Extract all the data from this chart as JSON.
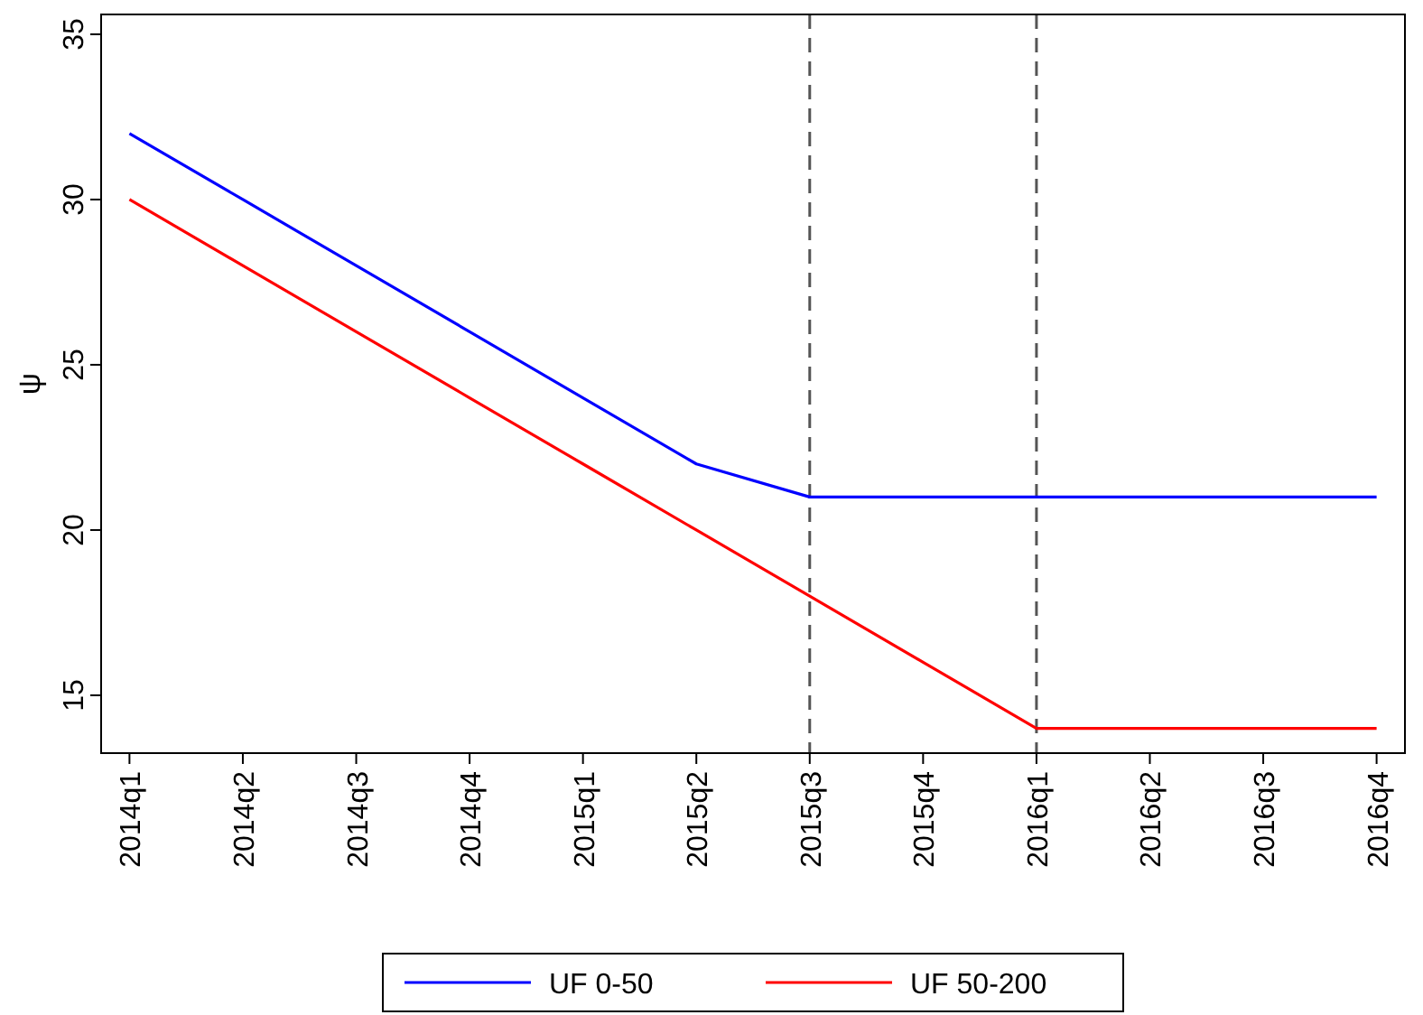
{
  "chart_data": {
    "type": "line",
    "ylabel": "ψ",
    "categories": [
      "2014q1",
      "2014q2",
      "2014q3",
      "2014q4",
      "2015q1",
      "2015q2",
      "2015q3",
      "2015q4",
      "2016q1",
      "2016q2",
      "2016q3",
      "2016q4"
    ],
    "series": [
      {
        "name": "UF 0-50",
        "color": "#0000ff",
        "values": [
          32,
          30,
          28,
          26,
          24,
          22,
          21,
          21,
          21,
          21,
          21,
          21
        ]
      },
      {
        "name": "UF 50-200",
        "color": "#ff0000",
        "values": [
          30,
          28,
          26,
          24,
          22,
          20,
          18,
          16,
          14,
          14,
          14,
          14
        ]
      }
    ],
    "ylim": [
      13.25,
      35.6
    ],
    "yticks": [
      15,
      20,
      25,
      30,
      35
    ],
    "ref_lines": [
      {
        "axis": "x",
        "value": "2015q3",
        "color": "#555555",
        "line_style": "dashed"
      },
      {
        "axis": "x",
        "value": "2016q1",
        "color": "#555555",
        "line_style": "dashed"
      }
    ],
    "legend": "bottom",
    "grid": false,
    "marker": "none",
    "line_style": "solid"
  }
}
